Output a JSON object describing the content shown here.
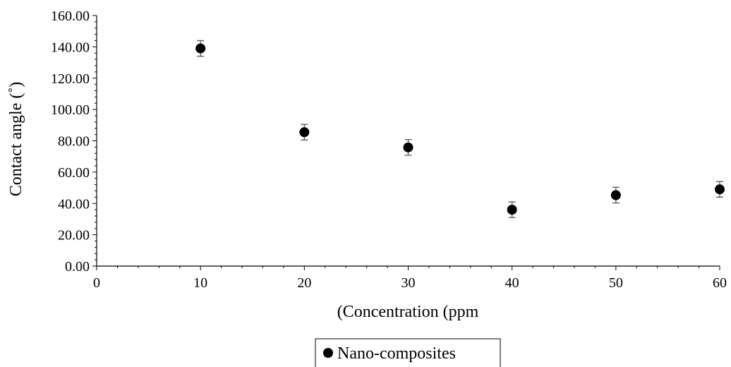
{
  "chart_data": {
    "type": "scatter",
    "xlabel": "(Concentration (ppm",
    "ylabel": "Contact angle (˚)",
    "xlim": [
      0,
      60
    ],
    "ylim": [
      0,
      160
    ],
    "xticks": [
      0,
      10,
      20,
      30,
      40,
      50,
      60
    ],
    "yticks": [
      0,
      20,
      40,
      60,
      80,
      100,
      120,
      140,
      160
    ],
    "x_tick_labels": [
      "0",
      "10",
      "20",
      "30",
      "40",
      "50",
      "60"
    ],
    "y_tick_labels": [
      "0.00",
      "20.00",
      "40.00",
      "60.00",
      "80.00",
      "100.00",
      "120.00",
      "140.00",
      "160.00"
    ],
    "grid": false,
    "legend_position": "bottom-center",
    "series": [
      {
        "name": "Nano-composites",
        "color": "#000000",
        "points": [
          {
            "x": 10,
            "y": 139.0,
            "err": 5.0
          },
          {
            "x": 20,
            "y": 85.5,
            "err": 5.0
          },
          {
            "x": 30,
            "y": 75.8,
            "err": 5.0
          },
          {
            "x": 40,
            "y": 36.0,
            "err": 5.0
          },
          {
            "x": 50,
            "y": 45.3,
            "err": 5.0
          },
          {
            "x": 60,
            "y": 49.0,
            "err": 5.0
          }
        ]
      }
    ]
  }
}
